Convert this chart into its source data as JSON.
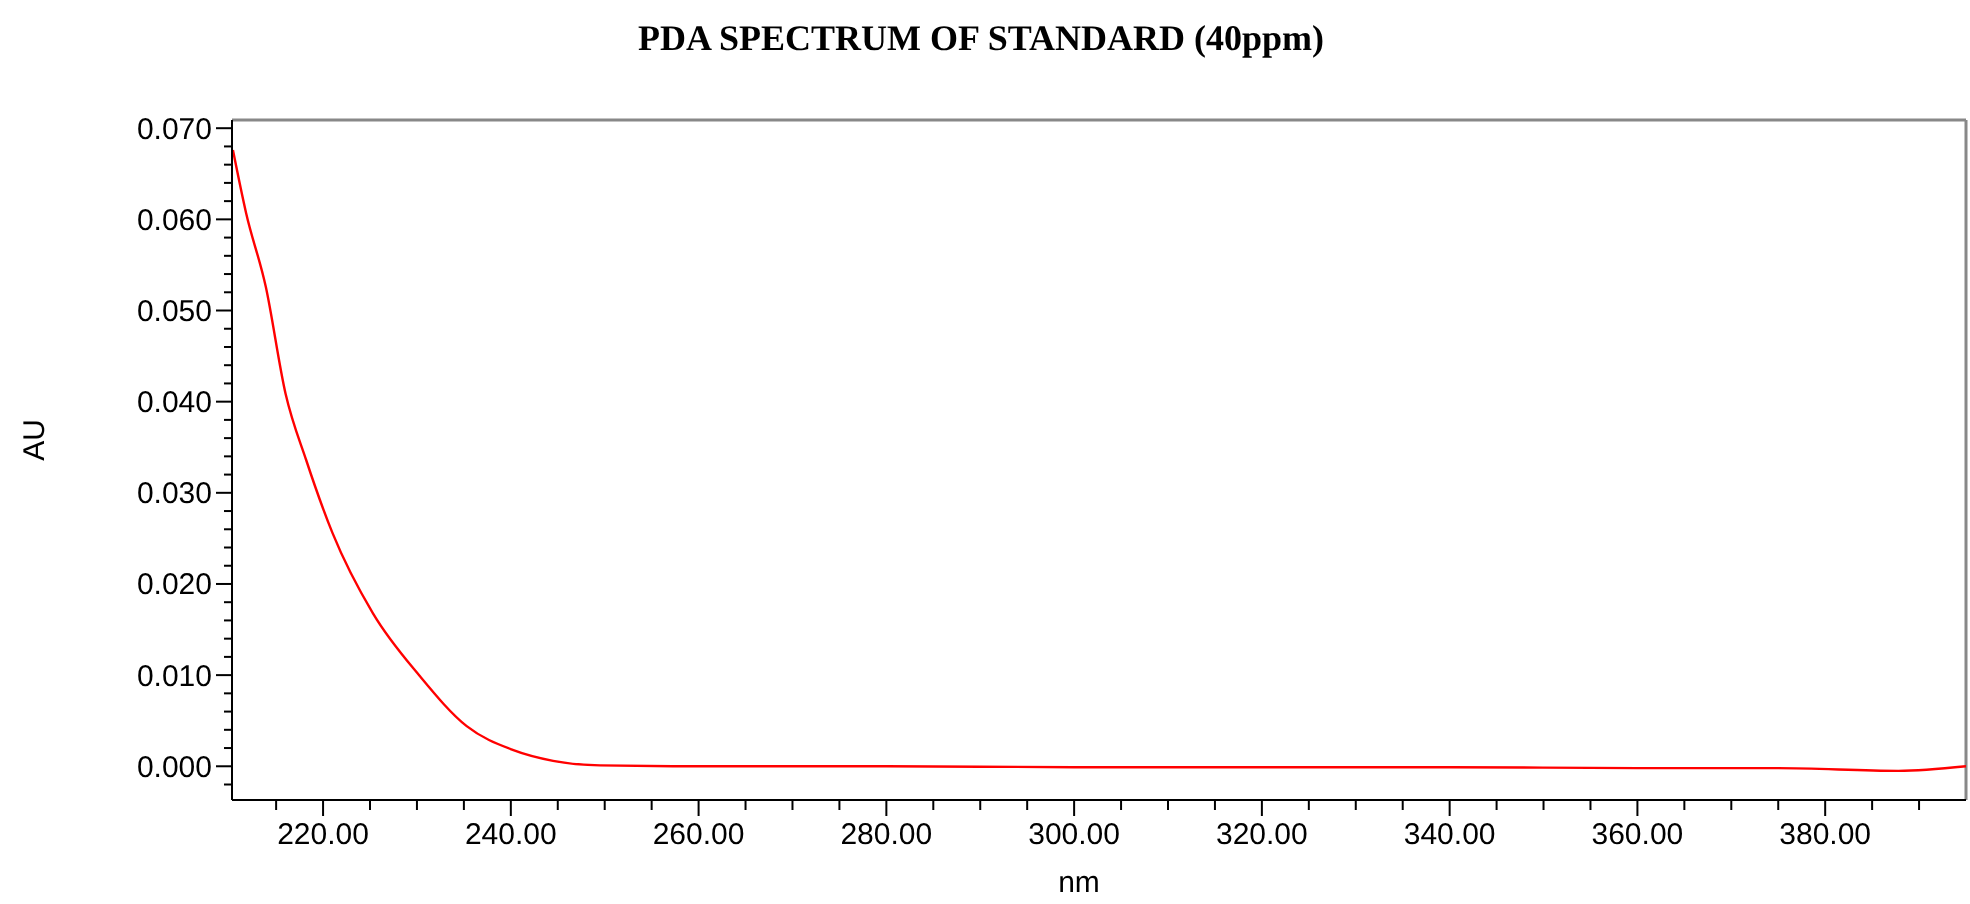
{
  "chart_data": {
    "type": "line",
    "title": "PDA SPECTRUM OF STANDARD (40ppm)",
    "xlabel": "nm",
    "ylabel": "AU",
    "xlim": [
      210.3,
      395
    ],
    "ylim": [
      -0.0037,
      0.0709
    ],
    "xticks": [
      {
        "value": 215,
        "label": null
      },
      {
        "value": 220,
        "label": "220.00"
      },
      {
        "value": 225,
        "label": null
      },
      {
        "value": 230,
        "label": null
      },
      {
        "value": 235,
        "label": null
      },
      {
        "value": 240,
        "label": "240.00"
      },
      {
        "value": 245,
        "label": null
      },
      {
        "value": 250,
        "label": null
      },
      {
        "value": 255,
        "label": null
      },
      {
        "value": 260,
        "label": "260.00"
      },
      {
        "value": 265,
        "label": null
      },
      {
        "value": 270,
        "label": null
      },
      {
        "value": 275,
        "label": null
      },
      {
        "value": 280,
        "label": "280.00"
      },
      {
        "value": 285,
        "label": null
      },
      {
        "value": 290,
        "label": null
      },
      {
        "value": 295,
        "label": null
      },
      {
        "value": 300,
        "label": "300.00"
      },
      {
        "value": 305,
        "label": null
      },
      {
        "value": 310,
        "label": null
      },
      {
        "value": 315,
        "label": null
      },
      {
        "value": 320,
        "label": "320.00"
      },
      {
        "value": 325,
        "label": null
      },
      {
        "value": 330,
        "label": null
      },
      {
        "value": 335,
        "label": null
      },
      {
        "value": 340,
        "label": "340.00"
      },
      {
        "value": 345,
        "label": null
      },
      {
        "value": 350,
        "label": null
      },
      {
        "value": 355,
        "label": null
      },
      {
        "value": 360,
        "label": "360.00"
      },
      {
        "value": 365,
        "label": null
      },
      {
        "value": 370,
        "label": null
      },
      {
        "value": 375,
        "label": null
      },
      {
        "value": 380,
        "label": "380.00"
      },
      {
        "value": 385,
        "label": null
      },
      {
        "value": 390,
        "label": null
      }
    ],
    "yticks": [
      {
        "value": -0.002,
        "label": null
      },
      {
        "value": 0,
        "label": "0.000"
      },
      {
        "value": 0.002,
        "label": null
      },
      {
        "value": 0.004,
        "label": null
      },
      {
        "value": 0.006,
        "label": null
      },
      {
        "value": 0.008,
        "label": null
      },
      {
        "value": 0.01,
        "label": "0.010"
      },
      {
        "value": 0.012,
        "label": null
      },
      {
        "value": 0.014,
        "label": null
      },
      {
        "value": 0.016,
        "label": null
      },
      {
        "value": 0.018,
        "label": null
      },
      {
        "value": 0.02,
        "label": "0.020"
      },
      {
        "value": 0.022,
        "label": null
      },
      {
        "value": 0.024,
        "label": null
      },
      {
        "value": 0.026,
        "label": null
      },
      {
        "value": 0.028,
        "label": null
      },
      {
        "value": 0.03,
        "label": "0.030"
      },
      {
        "value": 0.032,
        "label": null
      },
      {
        "value": 0.034,
        "label": null
      },
      {
        "value": 0.036,
        "label": null
      },
      {
        "value": 0.038,
        "label": null
      },
      {
        "value": 0.04,
        "label": "0.040"
      },
      {
        "value": 0.042,
        "label": null
      },
      {
        "value": 0.044,
        "label": null
      },
      {
        "value": 0.046,
        "label": null
      },
      {
        "value": 0.048,
        "label": null
      },
      {
        "value": 0.05,
        "label": "0.050"
      },
      {
        "value": 0.052,
        "label": null
      },
      {
        "value": 0.054,
        "label": null
      },
      {
        "value": 0.056,
        "label": null
      },
      {
        "value": 0.058,
        "label": null
      },
      {
        "value": 0.06,
        "label": "0.060"
      },
      {
        "value": 0.062,
        "label": null
      },
      {
        "value": 0.064,
        "label": null
      },
      {
        "value": 0.066,
        "label": null
      },
      {
        "value": 0.068,
        "label": null
      },
      {
        "value": 0.07,
        "label": "0.070"
      }
    ],
    "grid": false,
    "series": [
      {
        "color": "#ff0000",
        "x": [
          210.4,
          211.8,
          213.9,
          216.0,
          218.2,
          221.0,
          225.3,
          230.3,
          235.3,
          240.2,
          244.5,
          249.5,
          260,
          280,
          300,
          320,
          340,
          360,
          375,
          387.8,
          395
        ],
        "values": [
          0.0676,
          0.0607,
          0.0526,
          0.0409,
          0.0336,
          0.0256,
          0.0168,
          0.0099,
          0.0044,
          0.0018,
          0.0006,
          0.0001,
          0.0,
          0.0,
          -0.0001,
          -0.0001,
          -0.0001,
          -0.0002,
          -0.0002,
          -0.0005,
          0.0
        ]
      }
    ]
  }
}
